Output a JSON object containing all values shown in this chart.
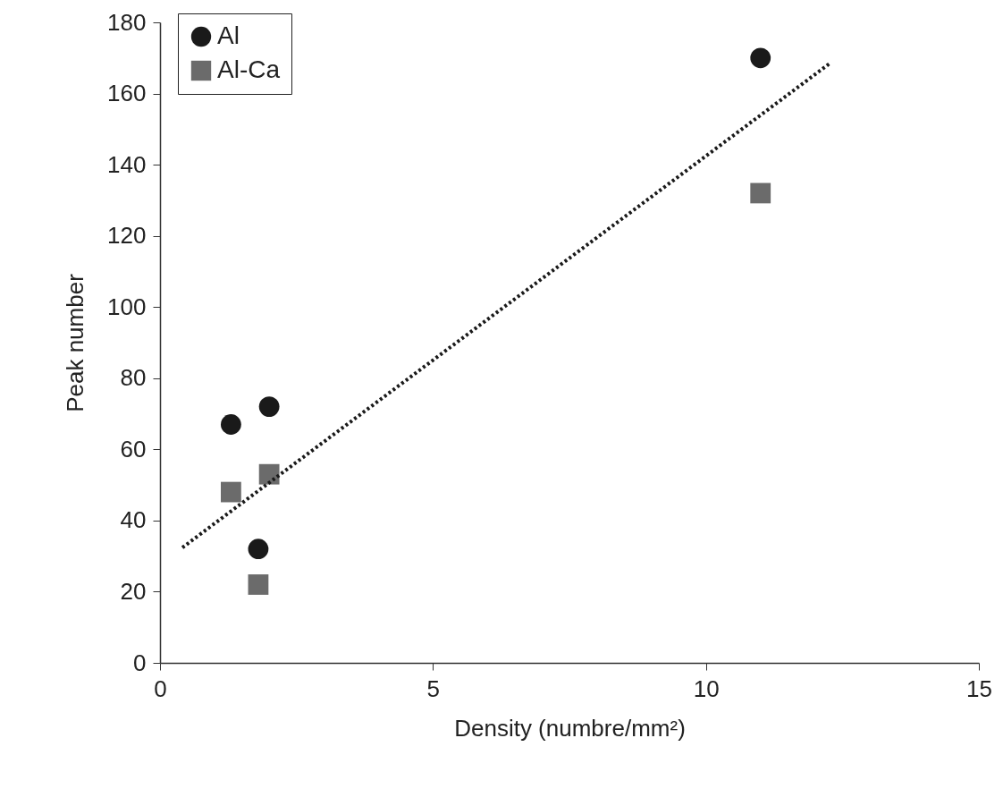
{
  "chart_data": {
    "type": "scatter",
    "xlabel": "Density (numbre/mm²)",
    "ylabel": "Peak number",
    "xlim": [
      0,
      15
    ],
    "ylim": [
      0,
      180
    ],
    "xticks": [
      0,
      5,
      10,
      15
    ],
    "yticks": [
      0,
      20,
      40,
      60,
      80,
      100,
      120,
      140,
      160,
      180
    ],
    "grid": false,
    "legend": "top left",
    "series": [
      {
        "name": "Al",
        "color": "#1a1a1a",
        "marker": "circle",
        "x": [
          1.3,
          2,
          1.8,
          11
        ],
        "values": [
          67,
          72,
          32,
          170
        ]
      },
      {
        "name": "Al-Ca",
        "color": "#6b6b6b",
        "marker": "square",
        "x": [
          1.3,
          2,
          1.8,
          11
        ],
        "values": [
          48,
          53,
          22,
          132
        ]
      },
      {
        "type": "line",
        "color": "#1a1a1a",
        "line_style": "dotted",
        "marker": "none",
        "x": [
          0.41,
          12.28
        ],
        "values": [
          32.4,
          168.6
        ]
      }
    ]
  }
}
